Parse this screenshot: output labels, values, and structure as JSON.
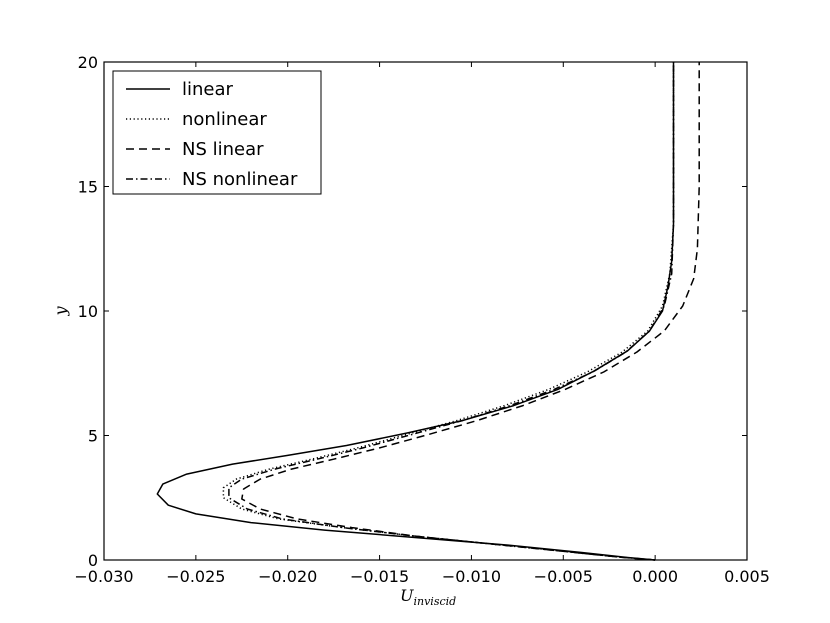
{
  "chart_data": {
    "type": "line",
    "title": "",
    "xlabel": "U",
    "xlabel_subscript": "inviscid",
    "ylabel": "y",
    "xlim": [
      -0.03,
      0.005
    ],
    "ylim": [
      0,
      20
    ],
    "xticks": [
      -0.03,
      -0.025,
      -0.02,
      -0.015,
      -0.01,
      -0.005,
      0.0,
      0.005
    ],
    "xtick_labels": [
      "−0.030",
      "−0.025",
      "−0.020",
      "−0.015",
      "−0.010",
      "−0.005",
      "0.000",
      "0.005"
    ],
    "yticks": [
      0,
      5,
      10,
      15,
      20
    ],
    "ytick_labels": [
      "0",
      "5",
      "10",
      "15",
      "20"
    ],
    "grid": false,
    "legend_position": "top-left",
    "series": [
      {
        "name": "linear",
        "style": "solid",
        "color": "#000000",
        "x": [
          0.0,
          -0.0015,
          -0.004,
          -0.008,
          -0.013,
          -0.018,
          -0.022,
          -0.025,
          -0.0265,
          -0.0271,
          -0.0268,
          -0.0255,
          -0.023,
          -0.02,
          -0.0168,
          -0.0135,
          -0.0105,
          -0.0077,
          -0.0053,
          -0.0033,
          -0.0015,
          -0.0003,
          0.0004,
          0.0007,
          0.0009,
          0.001,
          0.001,
          0.001
        ],
        "y": [
          0.0,
          0.1,
          0.3,
          0.6,
          0.9,
          1.2,
          1.5,
          1.85,
          2.2,
          2.65,
          3.05,
          3.45,
          3.85,
          4.2,
          4.6,
          5.1,
          5.6,
          6.2,
          6.85,
          7.6,
          8.4,
          9.2,
          10.0,
          11.0,
          12.0,
          13.5,
          16.0,
          20.0
        ]
      },
      {
        "name": "nonlinear",
        "style": "dotted",
        "color": "#000000",
        "x": [
          0.0,
          -0.002,
          -0.005,
          -0.009,
          -0.013,
          -0.017,
          -0.0205,
          -0.0225,
          -0.0235,
          -0.0235,
          -0.0228,
          -0.021,
          -0.0187,
          -0.0162,
          -0.0135,
          -0.0108,
          -0.0082,
          -0.0058,
          -0.0037,
          -0.0018,
          -0.0004,
          0.0004,
          0.0008,
          0.001,
          0.001
        ],
        "y": [
          0.0,
          0.12,
          0.35,
          0.65,
          0.95,
          1.3,
          1.65,
          2.05,
          2.5,
          2.9,
          3.25,
          3.65,
          4.05,
          4.5,
          5.05,
          5.6,
          6.2,
          6.85,
          7.55,
          8.35,
          9.2,
          10.2,
          11.5,
          13.5,
          20.0
        ]
      },
      {
        "name": "NS linear",
        "style": "dashed",
        "color": "#000000",
        "x": [
          0.0,
          -0.002,
          -0.005,
          -0.009,
          -0.013,
          -0.0165,
          -0.0195,
          -0.0215,
          -0.0225,
          -0.0224,
          -0.0215,
          -0.0198,
          -0.0175,
          -0.015,
          -0.0123,
          -0.0097,
          -0.0072,
          -0.0049,
          -0.0028,
          -0.001,
          0.0005,
          0.0015,
          0.0021,
          0.0023,
          0.0024,
          0.0024
        ],
        "y": [
          0.0,
          0.12,
          0.35,
          0.65,
          0.95,
          1.3,
          1.65,
          2.05,
          2.45,
          2.85,
          3.25,
          3.65,
          4.05,
          4.5,
          5.05,
          5.6,
          6.2,
          6.85,
          7.55,
          8.35,
          9.2,
          10.2,
          11.3,
          12.5,
          15.0,
          20.0
        ]
      },
      {
        "name": "NS nonlinear",
        "style": "dashdot",
        "color": "#000000",
        "x": [
          0.0,
          -0.002,
          -0.005,
          -0.009,
          -0.013,
          -0.017,
          -0.0203,
          -0.0222,
          -0.0232,
          -0.0232,
          -0.0225,
          -0.0207,
          -0.0184,
          -0.0159,
          -0.0132,
          -0.0105,
          -0.0079,
          -0.0055,
          -0.0034,
          -0.0016,
          -0.0003,
          0.0005,
          0.0009,
          0.001,
          0.001
        ],
        "y": [
          0.0,
          0.12,
          0.35,
          0.65,
          0.95,
          1.3,
          1.65,
          2.05,
          2.5,
          2.9,
          3.25,
          3.65,
          4.05,
          4.5,
          5.05,
          5.6,
          6.2,
          6.85,
          7.55,
          8.35,
          9.2,
          10.2,
          11.5,
          13.5,
          20.0
        ]
      }
    ]
  }
}
